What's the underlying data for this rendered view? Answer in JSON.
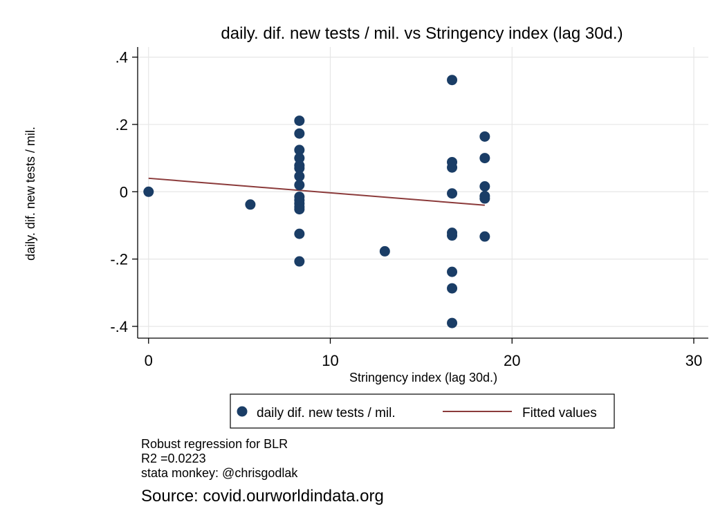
{
  "chart_data": {
    "type": "scatter",
    "title": "daily. dif. new tests / mil. vs Stringency index (lag 30d.)",
    "xlabel": "Stringency index (lag 30d.)",
    "ylabel": "daily. dif. new tests / mil.",
    "xlim": [
      -0.6,
      30.8
    ],
    "ylim": [
      -0.435,
      0.43
    ],
    "x_ticks": [
      0,
      10,
      20,
      30
    ],
    "x_tick_labels": [
      "0",
      "10",
      "20",
      "30"
    ],
    "y_ticks": [
      -0.4,
      -0.2,
      0,
      0.2,
      0.4
    ],
    "y_tick_labels": [
      "-.4",
      "-.2",
      "0",
      ".2",
      ".4"
    ],
    "grid": true,
    "legend_position": "bottom",
    "marker_color": "#1a3d66",
    "line_color": "#8b3a3a",
    "series": [
      {
        "name": "daily dif. new tests / mil.",
        "kind": "scatter",
        "points": [
          [
            0,
            0.0
          ],
          [
            5.6,
            -0.038
          ],
          [
            8.3,
            0.211
          ],
          [
            8.3,
            0.173
          ],
          [
            8.3,
            0.124
          ],
          [
            8.3,
            0.1
          ],
          [
            8.3,
            0.078
          ],
          [
            8.3,
            0.07
          ],
          [
            8.3,
            0.046
          ],
          [
            8.3,
            0.02
          ],
          [
            8.3,
            -0.015
          ],
          [
            8.3,
            -0.025
          ],
          [
            8.3,
            -0.035
          ],
          [
            8.3,
            -0.045
          ],
          [
            8.3,
            -0.052
          ],
          [
            8.3,
            -0.125
          ],
          [
            8.3,
            -0.207
          ],
          [
            13.0,
            -0.177
          ],
          [
            16.7,
            0.332
          ],
          [
            16.7,
            0.088
          ],
          [
            16.7,
            0.072
          ],
          [
            16.7,
            -0.005
          ],
          [
            16.7,
            -0.122
          ],
          [
            16.7,
            -0.13
          ],
          [
            16.7,
            -0.238
          ],
          [
            16.7,
            -0.287
          ],
          [
            16.7,
            -0.39
          ],
          [
            18.5,
            0.164
          ],
          [
            18.5,
            0.1
          ],
          [
            18.5,
            0.016
          ],
          [
            18.5,
            -0.013
          ],
          [
            18.5,
            -0.02
          ],
          [
            18.5,
            -0.133
          ]
        ]
      },
      {
        "name": "Fitted values",
        "kind": "line",
        "points": [
          [
            0,
            0.04
          ],
          [
            18.5,
            -0.04
          ]
        ]
      }
    ]
  },
  "notes": {
    "line1": "Robust regression for BLR",
    "line2": "R2 =0.0223",
    "line3": "stata monkey: @chrisgodlak"
  },
  "source": "Source: covid.ourworldindata.org"
}
